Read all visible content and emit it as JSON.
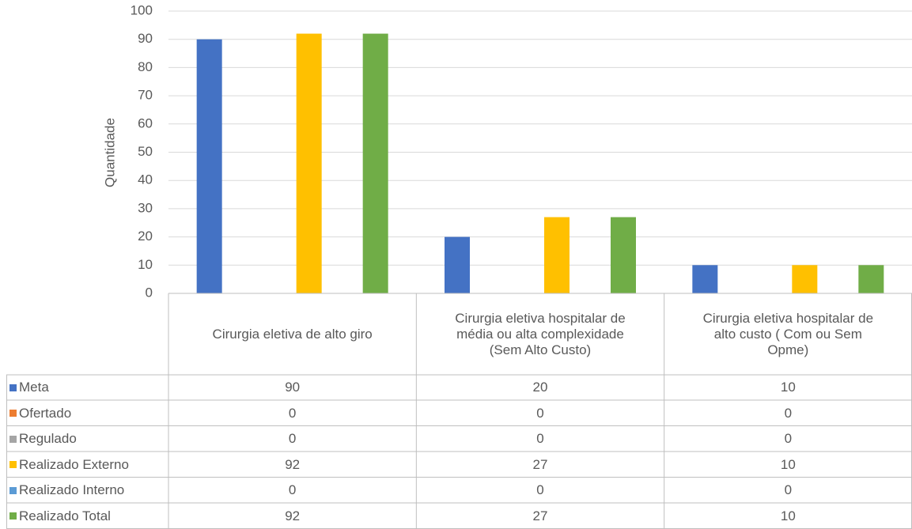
{
  "chart_data": {
    "type": "bar",
    "y_label": "Quantidade",
    "categories": [
      "Cirurgia eletiva de alto giro",
      "Cirurgia eletiva hospitalar de média ou alta complexidade (Sem Alto Custo)",
      "Cirurgia eletiva hospitalar de alto custo ( Com ou Sem Opme)"
    ],
    "series": [
      {
        "name": "Meta",
        "color": "#4472c4",
        "values": [
          90,
          20,
          10
        ]
      },
      {
        "name": "Ofertado",
        "color": "#ed7d31",
        "values": [
          0,
          0,
          0
        ]
      },
      {
        "name": "Regulado",
        "color": "#a5a5a5",
        "values": [
          0,
          0,
          0
        ]
      },
      {
        "name": "Realizado Externo",
        "color": "#ffc000",
        "values": [
          92,
          27,
          10
        ]
      },
      {
        "name": "Realizado Interno",
        "color": "#5b9bd5",
        "values": [
          0,
          0,
          0
        ]
      },
      {
        "name": "Realizado Total",
        "color": "#70ad47",
        "values": [
          92,
          27,
          10
        ]
      }
    ],
    "ylim": [
      0,
      100
    ],
    "yticks": [
      0,
      10,
      20,
      30,
      40,
      50,
      60,
      70,
      80,
      90,
      100
    ],
    "grid": true
  }
}
